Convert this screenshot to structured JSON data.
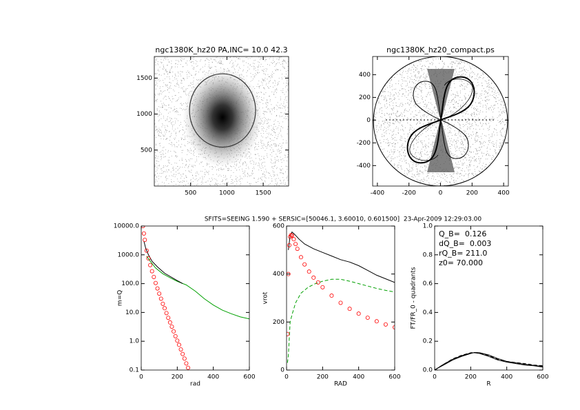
{
  "chart_data": [
    {
      "type": "image",
      "title": "ngc1380K_hz20 PA,INC= 10.0 42.3",
      "xlim": [
        0,
        1850
      ],
      "ylim": [
        0,
        1800
      ],
      "xticks": [
        500,
        1000,
        1500
      ],
      "yticks": [
        500,
        1000,
        1500
      ],
      "ellipse": {
        "cx": 940,
        "cy": 1050,
        "rx": 455,
        "ry": 510
      }
    },
    {
      "type": "contour",
      "title": "ngc1380K_hz20_compact.ps",
      "xlim": [
        -430,
        430
      ],
      "ylim": [
        -580,
        560
      ],
      "xticks": [
        -400,
        -200,
        0,
        200,
        400
      ],
      "yticks": [
        -400,
        -200,
        0,
        200,
        400
      ],
      "ellipse": {
        "cx": 0,
        "cy": -10,
        "rx": 425,
        "ry": 570
      }
    },
    {
      "type": "line",
      "suptitle": "SFITS=SEEING 1.590 + SERSIC=[50046.1, 3.60010, 0.601500]  23-Apr-2009 12:29:03.00",
      "xlabel": "rad",
      "ylabel": "m=Q",
      "log_y": true,
      "xlim": [
        0,
        600
      ],
      "ylim": [
        0.1,
        10000
      ],
      "xticks": [
        0,
        200,
        400,
        600
      ],
      "yticks": [
        {
          "value": 10000,
          "label": "10000.0"
        },
        {
          "value": 1000,
          "label": "1000.0"
        },
        {
          "value": 100,
          "label": "100.0"
        },
        {
          "value": 10,
          "label": "10.0"
        },
        {
          "value": 1,
          "label": "1.0"
        },
        0.1
      ],
      "series": [
        {
          "color": "#00a000",
          "style": "line",
          "x": [
            30,
            50,
            80,
            120,
            160,
            200,
            250,
            300,
            350,
            400,
            450,
            500,
            550,
            600
          ],
          "values": [
            900,
            600,
            350,
            220,
            160,
            120,
            90,
            55,
            30,
            18,
            12,
            9,
            7,
            6
          ]
        },
        {
          "color": "#000000",
          "style": "line",
          "x": [
            15,
            25,
            40,
            60,
            90,
            130,
            180,
            230
          ],
          "values": [
            3000,
            1700,
            1000,
            600,
            380,
            230,
            150,
            100
          ]
        },
        {
          "color": "#ff0000",
          "style": "circles",
          "x": [
            10,
            15,
            20,
            30,
            40,
            50,
            60,
            70,
            80,
            90,
            100,
            110,
            120,
            130,
            140,
            150,
            160,
            170,
            180,
            190,
            200,
            210,
            220,
            230,
            240,
            250,
            260
          ],
          "values": [
            10000,
            5500,
            3300,
            1400,
            750,
            440,
            270,
            170,
            105,
            68,
            45,
            30,
            20,
            14,
            9.5,
            6.5,
            4.5,
            3.2,
            2.2,
            1.5,
            1.05,
            0.75,
            0.52,
            0.36,
            0.25,
            0.17,
            0.12
          ]
        }
      ]
    },
    {
      "type": "line",
      "xlabel": "RAD",
      "ylabel": "vrot",
      "xlim": [
        0,
        600
      ],
      "ylim": [
        0,
        600
      ],
      "xticks": [
        0,
        200,
        400,
        600
      ],
      "yticks": [
        0,
        200,
        400,
        600
      ],
      "series": [
        {
          "color": "#000000",
          "style": "line",
          "x": [
            10,
            20,
            30,
            45,
            70,
            100,
            150,
            200,
            250,
            300,
            350,
            400,
            450,
            500,
            550,
            600
          ],
          "values": [
            500,
            560,
            575,
            565,
            545,
            525,
            505,
            490,
            475,
            460,
            450,
            435,
            415,
            395,
            380,
            365
          ]
        },
        {
          "color": "#00a000",
          "style": "dashed",
          "x": [
            5,
            10,
            20,
            30,
            50,
            80,
            120,
            160,
            200,
            250,
            300,
            350,
            400,
            450,
            500,
            550,
            600
          ],
          "values": [
            30,
            60,
            200,
            230,
            280,
            320,
            345,
            360,
            370,
            378,
            378,
            370,
            360,
            350,
            340,
            332,
            325
          ]
        },
        {
          "color": "#ff0000",
          "style": "circles",
          "x": [
            5,
            10,
            15,
            20,
            25,
            30,
            40,
            50,
            60,
            80,
            100,
            125,
            150,
            175,
            200,
            250,
            300,
            350,
            400,
            450,
            500,
            550,
            600
          ],
          "values": [
            150,
            400,
            520,
            555,
            562,
            560,
            545,
            525,
            505,
            470,
            440,
            410,
            385,
            365,
            345,
            310,
            280,
            255,
            235,
            218,
            203,
            190,
            178
          ]
        }
      ]
    },
    {
      "type": "line",
      "xlabel": "R",
      "ylabel": "FT/FR_0 - quadrants",
      "xlim": [
        0,
        600
      ],
      "ylim": [
        0,
        1
      ],
      "xticks": [
        0,
        200,
        400,
        600
      ],
      "yticks": [
        {
          "value": 0,
          "label": "0.0"
        },
        0.2,
        0.4,
        0.6,
        0.8,
        {
          "value": 1,
          "label": "1.0"
        }
      ],
      "annotations": [
        "Q_B=  0.126",
        "dQ_B=  0.003",
        "rQ_B= 211.0",
        "z0= 70.000"
      ],
      "series": [
        {
          "color": "#000000",
          "style": "line",
          "x": [
            0,
            25,
            50,
            100,
            150,
            200,
            220,
            250,
            300,
            350,
            400,
            450,
            500,
            550,
            600
          ],
          "values": [
            0,
            0.02,
            0.04,
            0.075,
            0.1,
            0.118,
            0.12,
            0.115,
            0.095,
            0.07,
            0.055,
            0.045,
            0.035,
            0.03,
            0.02
          ]
        },
        {
          "color": "#000000",
          "style": "line",
          "x": [
            0,
            25,
            50,
            100,
            150,
            200,
            220,
            250,
            300,
            350,
            400,
            450,
            500,
            550,
            600
          ],
          "values": [
            0,
            0.018,
            0.035,
            0.07,
            0.095,
            0.115,
            0.122,
            0.12,
            0.105,
            0.08,
            0.06,
            0.05,
            0.04,
            0.032,
            0.025
          ]
        },
        {
          "color": "#000000",
          "style": "dashed",
          "x": [
            0,
            25,
            50,
            100,
            150,
            200,
            220,
            250,
            300,
            350,
            400,
            450,
            500,
            550,
            600
          ],
          "values": [
            0,
            0.02,
            0.04,
            0.078,
            0.103,
            0.12,
            0.121,
            0.118,
            0.1,
            0.075,
            0.06,
            0.052,
            0.045,
            0.035,
            0.03
          ]
        }
      ]
    }
  ]
}
